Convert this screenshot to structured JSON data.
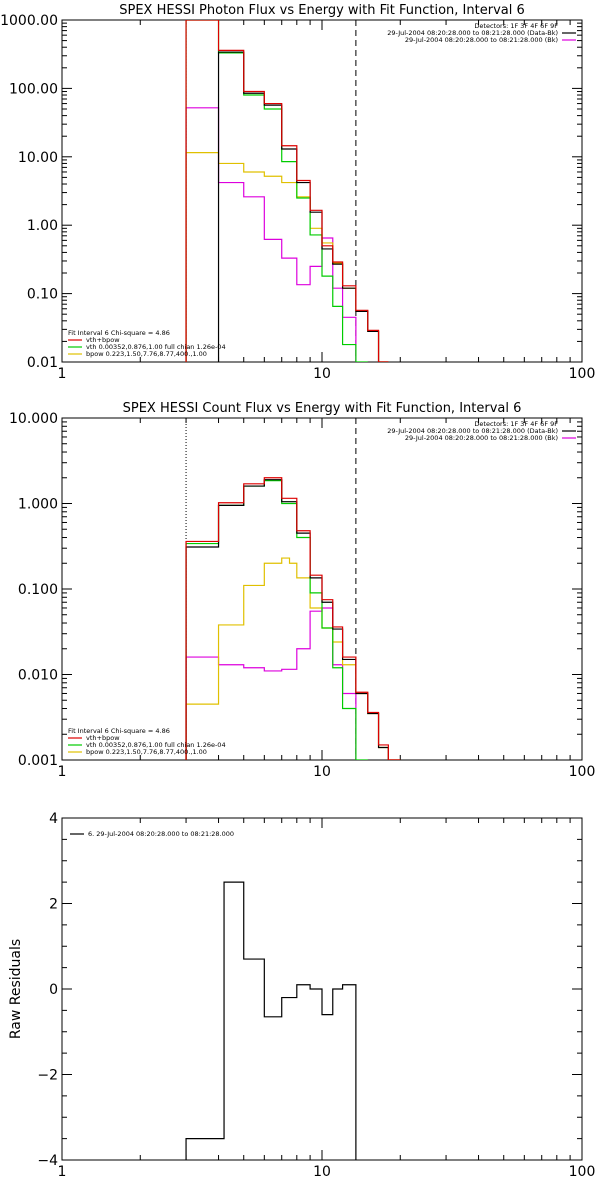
{
  "colors": {
    "total": "#000000",
    "fit": "#dd0000",
    "vth": "#00cc00",
    "bpow": "#e0c000",
    "bk": "#dd00dd",
    "axes": "#000000"
  },
  "chart_data": [
    {
      "id": "photon",
      "type": "line",
      "title": "SPEX HESSI Photon Flux vs Energy with Fit Function, Interval 6",
      "xscale": "log",
      "yscale": "log",
      "xlim": [
        1,
        100
      ],
      "ylim": [
        0.01,
        1000
      ],
      "xticks": [
        "1",
        "10",
        "100"
      ],
      "yticks": [
        "1000.00",
        "100.00",
        "10.00",
        "1.00",
        "0.10",
        "0.01"
      ],
      "ytickvals": [
        1000,
        100,
        10,
        1,
        0.1,
        0.01
      ],
      "vlines": [
        {
          "x": 3.0,
          "style": "dotted"
        },
        {
          "x": 13.5,
          "style": "dashed"
        }
      ],
      "legend_topright": [
        {
          "text": "Detectors: 1F 3F 4F 6F 9F",
          "color": ""
        },
        {
          "text": "29-Jul-2004 08:20:28.000 to 08:21:28.000 (Data-Bk)",
          "color": "#000000"
        },
        {
          "text": "29-Jul-2004 08:20:28.000 to 08:21:28.000 (Bk)",
          "color": "#dd00dd"
        }
      ],
      "legend_bottomleft": [
        {
          "text": "Fit Interval 6   Chi-square = 4.86",
          "color": ""
        },
        {
          "text": "vth+bpow",
          "color": "#dd0000"
        },
        {
          "text": "vth 0.00352,0.876,1.00   full chian 1.26e-04",
          "color": "#00cc00"
        },
        {
          "text": "bpow 0.223,1.50,7.76,8.77,400.,1.00",
          "color": "#e0c000"
        }
      ],
      "edges": [
        3,
        4,
        5,
        6,
        7,
        8,
        9,
        10,
        11,
        12,
        13.5,
        15,
        16.5,
        18,
        20
      ],
      "series": [
        {
          "key": "total",
          "values": [
            null,
            340,
            85,
            57,
            13,
            4.2,
            1.55,
            0.45,
            0.27,
            0.12,
            0.055,
            0.028,
            0.008,
            null
          ]
        },
        {
          "key": "fit",
          "values": [
            1500,
            360,
            90,
            60,
            14.5,
            4.5,
            1.65,
            0.5,
            0.29,
            0.13,
            0.057,
            0.029,
            0.0085,
            null
          ]
        },
        {
          "key": "vth",
          "values": [
            1400,
            330,
            80,
            50,
            8.5,
            2.5,
            0.72,
            0.18,
            0.065,
            0.018,
            0.004,
            null,
            null,
            null
          ]
        },
        {
          "key": "bpow",
          "values": [
            11.5,
            8.0,
            6.0,
            5.2,
            4.2,
            2.6,
            0.9,
            0.55,
            0.28,
            0.12,
            0.055,
            0.028,
            0.008,
            null
          ]
        },
        {
          "key": "bk",
          "values": [
            52,
            4.2,
            2.6,
            0.62,
            0.33,
            0.135,
            0.25,
            0.65,
            0.12,
            0.045,
            null,
            null,
            null,
            null
          ]
        }
      ]
    },
    {
      "id": "count",
      "type": "line",
      "title": "SPEX HESSI Count Flux vs Energy with Fit Function, Interval 6",
      "xscale": "log",
      "yscale": "log",
      "xlim": [
        1,
        100
      ],
      "ylim": [
        0.001,
        10
      ],
      "xticks": [
        "1",
        "10",
        "100"
      ],
      "yticks": [
        "10.000",
        "1.000",
        "0.100",
        "0.010",
        "0.001"
      ],
      "ytickvals": [
        10,
        1,
        0.1,
        0.01,
        0.001
      ],
      "vlines": [
        {
          "x": 3.0,
          "style": "dotted"
        },
        {
          "x": 13.5,
          "style": "dashed"
        }
      ],
      "legend_topright": [
        {
          "text": "Detectors: 1F 3F 4F 6F 9F",
          "color": ""
        },
        {
          "text": "29-Jul-2004 08:20:28.000 to 08:21:28.000 (Data-Bk)",
          "color": "#000000"
        },
        {
          "text": "29-Jul-2004 08:20:28.000 to 08:21:28.000 (Bk)",
          "color": "#dd00dd"
        }
      ],
      "legend_bottomleft": [
        {
          "text": "Fit Interval 6   Chi-square = 4.86",
          "color": ""
        },
        {
          "text": "vth+bpow",
          "color": "#dd0000"
        },
        {
          "text": "vth 0.00352,0.876,1.00   full chian 1.26e-04",
          "color": "#00cc00"
        },
        {
          "text": "bpow 0.223,1.50,7.76,8.77,400.,1.00",
          "color": "#e0c000"
        }
      ],
      "edges": [
        3,
        4,
        5,
        6,
        7,
        7.5,
        8,
        9,
        10,
        11,
        12,
        13.5,
        15,
        16.5,
        18,
        20
      ],
      "series": [
        {
          "key": "total",
          "values": [
            0.31,
            0.95,
            1.6,
            1.9,
            1.05,
            1.05,
            0.45,
            0.135,
            0.07,
            0.034,
            0.015,
            0.006,
            0.0035,
            0.0014,
            0.001
          ]
        },
        {
          "key": "fit",
          "values": [
            0.36,
            1.02,
            1.7,
            2.0,
            1.15,
            1.15,
            0.48,
            0.145,
            0.075,
            0.036,
            0.016,
            0.0062,
            0.0036,
            0.0015,
            0.001
          ]
        },
        {
          "key": "vth",
          "values": [
            0.34,
            0.95,
            1.6,
            1.85,
            1.0,
            1.0,
            0.4,
            0.09,
            0.035,
            0.012,
            0.004,
            0.001,
            null,
            null,
            null
          ]
        },
        {
          "key": "bpow",
          "values": [
            0.0045,
            0.038,
            0.11,
            0.2,
            0.23,
            0.2,
            0.135,
            0.06,
            0.035,
            0.024,
            0.013,
            0.006,
            0.0035,
            0.0014,
            0.001
          ]
        },
        {
          "key": "bk",
          "values": [
            0.016,
            0.013,
            0.012,
            0.011,
            0.0115,
            0.0115,
            0.02,
            0.055,
            0.06,
            0.013,
            0.006,
            null,
            null,
            null,
            null
          ]
        }
      ]
    },
    {
      "id": "residuals",
      "type": "line",
      "title": "",
      "xscale": "log",
      "yscale": "linear",
      "xlim": [
        1,
        100
      ],
      "ylim": [
        -4,
        4
      ],
      "ylabel": "Raw Residuals",
      "xticks": [
        "1",
        "10",
        "100"
      ],
      "yticks": [
        "4",
        "2",
        "0",
        "−2",
        "−4"
      ],
      "ytickvals": [
        4,
        2,
        0,
        -2,
        -4
      ],
      "legend_topleft": [
        {
          "text": "6. 29-Jul-2004 08:20:28.000 to 08:21:28.000",
          "color": "#000000"
        }
      ],
      "edges": [
        3,
        4.2,
        5,
        6,
        7,
        8,
        9,
        10,
        11,
        12,
        13.5
      ],
      "series": [
        {
          "key": "total",
          "values": [
            -3.5,
            2.5,
            0.7,
            -0.65,
            -0.2,
            0.1,
            0.0,
            -0.6,
            0.0,
            0.1
          ]
        }
      ]
    }
  ]
}
